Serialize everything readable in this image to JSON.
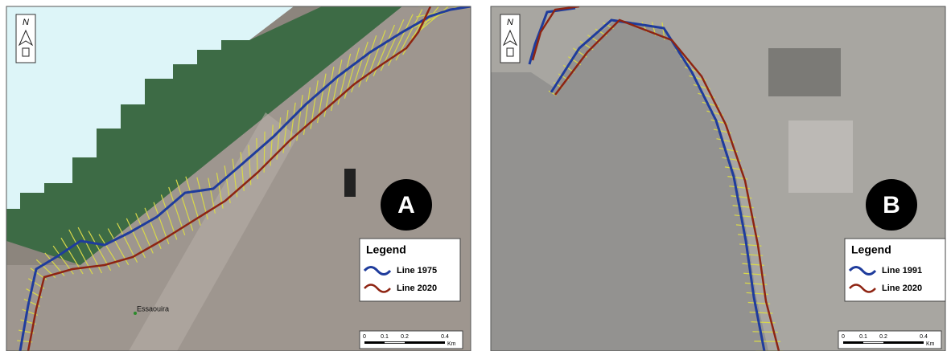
{
  "panels": [
    {
      "label": "A",
      "north": "N",
      "place": "Essaouira",
      "legend": {
        "title": "Legend",
        "items": [
          "Line 1975",
          "Line 2020"
        ]
      },
      "scale": {
        "ticks": [
          "0",
          "0.1",
          "0.2",
          "0.4"
        ],
        "unit": "Km"
      }
    },
    {
      "label": "B",
      "north": "N",
      "legend": {
        "title": "Legend",
        "items": [
          "Line 1991",
          "Line 2020"
        ]
      },
      "scale": {
        "ticks": [
          "0",
          "0.1",
          "0.2",
          "0.4"
        ],
        "unit": "Km"
      }
    }
  ]
}
